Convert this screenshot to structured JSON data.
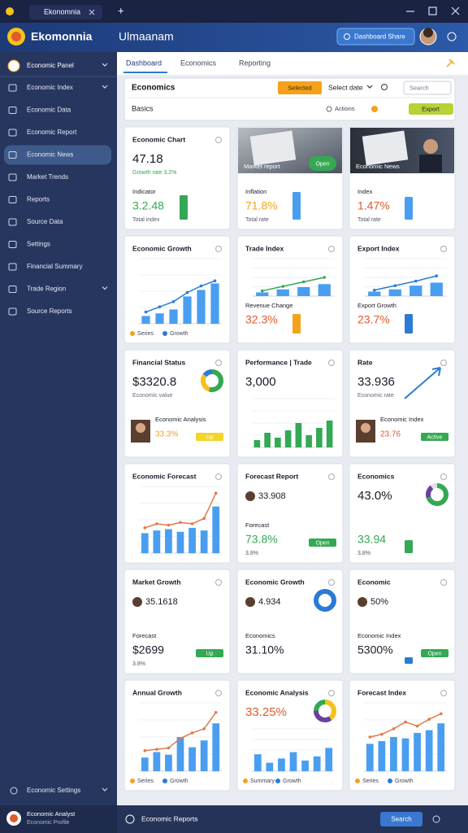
{
  "window": {
    "tab": "Ekonomnia",
    "new_tab": "+"
  },
  "header": {
    "app": "Ekomonnia",
    "page": "Ulmaanam",
    "button": "Dashboard Share"
  },
  "sidebar": {
    "user": "Economic Panel",
    "items": [
      "Economic Index",
      "Economic Data",
      "Economic Report",
      "Economic News",
      "Market Trends",
      "Reports",
      "Source Data",
      "Settings",
      "Financial Summary",
      "Trade Region",
      "Source Reports"
    ],
    "active": 3,
    "footer_item": "Economic Settings",
    "profile_name": "Economic Analyst",
    "profile_sub": "Economic Profile"
  },
  "tabs": [
    "Dashboard",
    "Economics",
    "Reporting"
  ],
  "toolbar": {
    "title": "Economics",
    "select_button": "Selected",
    "date": "Select date",
    "search": "Search",
    "label": "Basics",
    "action": "Actions",
    "export": "Export"
  },
  "mini_ylim": [
    0,
    100
  ],
  "bar_color": "#4a9ef0",
  "cards": [
    {
      "title": "Economic Chart",
      "value": "47.18",
      "sub": "Growth rate 3.2%",
      "sub_color": "#34a853",
      "label2": "Indicator",
      "value2": "3.2.48",
      "value2_color": "#34a853",
      "note2": "Total index",
      "bar2": 75,
      "bar2_color": "#34a853"
    },
    {
      "photo": "Market report",
      "chip": "Open",
      "chip_color": "#34a853",
      "label2": "Inflation",
      "value2": "71.8%",
      "value2_color": "#f4a21b",
      "note2": "Total rate",
      "bar2": 85,
      "bar2_color": "#4a9ef0"
    },
    {
      "photo": "Economic News",
      "label2": "Index",
      "value2": "1.47%",
      "value2_color": "#e05a2b",
      "note2": "Total rate",
      "bar2": 70,
      "bar2_color": "#4a9ef0"
    },
    {
      "title": "Economic Growth",
      "bars": [
        12,
        16,
        22,
        42,
        52,
        62
      ],
      "line": [
        18,
        26,
        34,
        48,
        58,
        66
      ],
      "line_color": "#2b7bd6",
      "legend": [
        "Series",
        "Growth"
      ]
    },
    {
      "title": "Trade Index",
      "bars": [
        10,
        18,
        24,
        32
      ],
      "line": [
        14,
        26,
        38,
        50
      ],
      "line_color": "#34a853",
      "label2": "Revenue Change",
      "value2": "32.3%",
      "value2_color": "#e05a2b",
      "bar2": 60,
      "bar2_color": "#f4a21b"
    },
    {
      "title": "Export Index",
      "bars": [
        12,
        18,
        28,
        36
      ],
      "line": [
        16,
        28,
        40,
        54
      ],
      "line_color": "#2b7bd6",
      "label2": "Export Growth",
      "value2": "23.7%",
      "value2_color": "#e05a2b",
      "bar2": 60,
      "bar2_color": "#2b7bd6"
    },
    {
      "title": "Financial Status",
      "value": "$3320.8",
      "sub": "Economic value",
      "donut": [
        55,
        30,
        15
      ],
      "donut_colors": [
        "#34a853",
        "#f4c21b",
        "#2b7bd6"
      ],
      "avatar2": true,
      "label2": "Economic Analysis",
      "value2": "33.3%",
      "value2_color": "#f4a21b",
      "chip": "Up",
      "chip_color": "#f5d327"
    },
    {
      "title": "Performance | Trade",
      "value": "3,000",
      "bars": [
        15,
        30,
        20,
        35,
        50,
        25,
        40,
        55
      ],
      "bar_color": "#34a853"
    },
    {
      "title": "Rate",
      "value": "33.936",
      "sub": "Economic rate",
      "arrow": true,
      "avatar2": true,
      "label2": "Economic Index",
      "value2": "23.76",
      "value2_color": "#e05a2b",
      "chip": "Active",
      "chip_color": "#34a853"
    },
    {
      "title": "Economic Forecast",
      "bars": [
        30,
        34,
        36,
        32,
        38,
        34,
        70
      ],
      "line": [
        38,
        44,
        42,
        46,
        44,
        52,
        90
      ],
      "line_color": "#e07a4a"
    },
    {
      "title": "Forecast Report",
      "value": "33.908",
      "avatar": true,
      "label2": "Forecast",
      "value2": "73.8%",
      "value2_color": "#34a853",
      "note2": "3.8%",
      "chip": "Open",
      "chip_color": "#34a853"
    },
    {
      "title": "Economics",
      "value": "43.0%",
      "donut": [
        70,
        20,
        10
      ],
      "donut_colors": [
        "#34a853",
        "#6a3fa0",
        "#e0e0e0"
      ],
      "value2": "33.94",
      "value2_color": "#34a853",
      "note2": "3.8%",
      "bar2": 40,
      "bar2_color": "#34a853"
    },
    {
      "title": "Market Growth",
      "value": "35.1618",
      "avatar": true,
      "label2": "Forecast",
      "value2": "$2699",
      "note2": "3.8%",
      "chip": "Up",
      "chip_color": "#34a853"
    },
    {
      "title": "Economic Growth",
      "value": "4.934",
      "avatar": true,
      "label2": "Economics",
      "value2": "31.10%",
      "donut": [
        100
      ],
      "donut_colors": [
        "#2b7bd6"
      ]
    },
    {
      "title": "Economic",
      "value": "50%",
      "avatar": true,
      "label2": "Economic Index",
      "value2": "5300%",
      "chip": "Open",
      "chip_color": "#34a853",
      "bar2": 20,
      "bar2_color": "#2b7bd6"
    },
    {
      "title": "Annual Growth",
      "bars": [
        20,
        28,
        24,
        50,
        35,
        45,
        70
      ],
      "line": [
        30,
        32,
        34,
        48,
        56,
        62,
        86
      ],
      "line_color": "#e07a4a",
      "legend": [
        "Series",
        "Growth"
      ]
    },
    {
      "title": "Economic Analysis",
      "value": "33.25%",
      "value_color": "#e05a2b",
      "donut": [
        40,
        35,
        25
      ],
      "donut_colors": [
        "#f4c21b",
        "#6a3fa0",
        "#34a853"
      ],
      "bars": [
        40,
        20,
        30,
        45,
        25,
        35,
        55
      ],
      "legend": [
        "Summary",
        "Growth"
      ]
    },
    {
      "title": "Forecast Index",
      "bars": [
        40,
        44,
        50,
        48,
        56,
        60,
        70
      ],
      "line": [
        50,
        54,
        62,
        72,
        66,
        76,
        84
      ],
      "line_color": "#e07a4a",
      "legend": [
        "Series",
        "Growth"
      ]
    }
  ],
  "footer": {
    "text": "Economic Reports",
    "button": "Search"
  }
}
